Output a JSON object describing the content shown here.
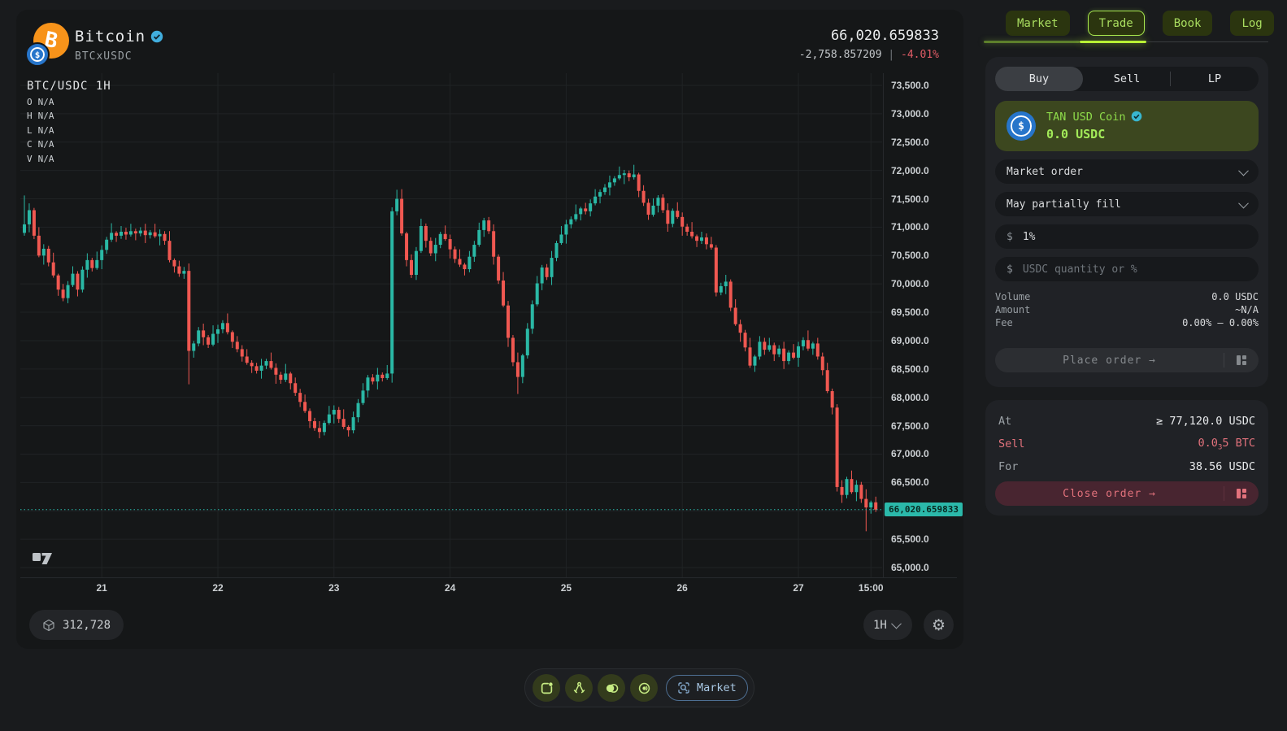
{
  "chart_panel": {
    "asset": {
      "name": "Bitcoin",
      "pair": "BTCxUSDC",
      "verified": true,
      "base_symbol": "B",
      "quote_symbol": "$"
    },
    "price": {
      "last": "66,020.659833",
      "change": "-2,758.857209",
      "separator": "|",
      "change_pct": "-4.01%"
    },
    "legend": {
      "symbol": "BTC/USDC 1H",
      "rows": [
        {
          "k": "O",
          "v": "N/A"
        },
        {
          "k": "H",
          "v": "N/A"
        },
        {
          "k": "L",
          "v": "N/A"
        },
        {
          "k": "C",
          "v": "N/A"
        },
        {
          "k": "V",
          "v": "N/A"
        }
      ]
    },
    "price_tag": "66,020.659833",
    "footer": {
      "block_number": "312,728",
      "interval": "1H"
    }
  },
  "chart_data": {
    "type": "candlestick",
    "title": "BTC/USDC 1H",
    "ohlcv_display": {
      "O": "N/A",
      "H": "N/A",
      "L": "N/A",
      "C": "N/A",
      "V": "N/A"
    },
    "y_axis": {
      "max": 73500,
      "min": 65000,
      "step": 500
    },
    "y_ticks": [
      "73,500.0",
      "73,000.0",
      "72,500.0",
      "72,000.0",
      "71,500.0",
      "71,000.0",
      "70,500.0",
      "70,000.0",
      "69,500.0",
      "69,000.0",
      "68,500.0",
      "68,000.0",
      "67,500.0",
      "67,000.0",
      "66,500.0",
      "66,000.0",
      "65,500.0",
      "65,000.0"
    ],
    "x_ticks": [
      {
        "label": "21",
        "candle_index": 16
      },
      {
        "label": "22",
        "candle_index": 40
      },
      {
        "label": "23",
        "candle_index": 64
      },
      {
        "label": "24",
        "candle_index": 88
      },
      {
        "label": "25",
        "candle_index": 112
      },
      {
        "label": "26",
        "candle_index": 136
      },
      {
        "label": "27",
        "candle_index": 160
      },
      {
        "label": "15:00",
        "candle_index": 175
      }
    ],
    "interval": "1H",
    "last_price": 66020.659833,
    "colors": {
      "up": "#2ab8a5",
      "down": "#f05851",
      "price_line": "#2bb9aa"
    },
    "series": {
      "first_open": 70900,
      "closes": [
        71050,
        71300,
        70850,
        70500,
        70620,
        70380,
        70150,
        69900,
        69750,
        69980,
        70180,
        69900,
        70250,
        70420,
        70280,
        70420,
        70600,
        70780,
        70900,
        70850,
        70920,
        70870,
        70930,
        70890,
        70940,
        70860,
        70910,
        70840,
        70880,
        70760,
        70420,
        70310,
        70180,
        70230,
        68820,
        68950,
        69180,
        69060,
        68930,
        69120,
        69200,
        69310,
        69150,
        68980,
        68850,
        68720,
        68610,
        68550,
        68470,
        68560,
        68640,
        68520,
        68400,
        68310,
        68420,
        68250,
        68080,
        67920,
        67760,
        67580,
        67460,
        67390,
        67550,
        67700,
        67780,
        67620,
        67480,
        67420,
        67650,
        67900,
        68120,
        68350,
        68280,
        68400,
        68340,
        68420,
        71280,
        71500,
        70890,
        70420,
        70160,
        70580,
        71020,
        70760,
        70540,
        70690,
        70880,
        70790,
        70610,
        70440,
        70340,
        70260,
        70480,
        70690,
        70950,
        71120,
        70930,
        70480,
        70060,
        69620,
        69050,
        68620,
        68360,
        68740,
        69210,
        69640,
        70010,
        70290,
        70120,
        70460,
        70720,
        70870,
        71050,
        71140,
        71230,
        71330,
        71280,
        71420,
        71540,
        71620,
        71700,
        71790,
        71860,
        71920,
        71950,
        71880,
        71930,
        71640,
        71430,
        71220,
        71380,
        71520,
        71300,
        71060,
        71290,
        71180,
        71010,
        70920,
        70840,
        70760,
        70820,
        70700,
        70640,
        69850,
        69960,
        70040,
        69580,
        69290,
        69140,
        68880,
        68560,
        68720,
        68980,
        68840,
        68920,
        68760,
        68860,
        68640,
        68790,
        68700,
        68900,
        69010,
        68860,
        68950,
        68720,
        68480,
        68110,
        67820,
        66420,
        66280,
        66560,
        66330,
        66460,
        66210,
        66060,
        66150,
        66020.66
      ],
      "wick_up_cycle": [
        60,
        120,
        40,
        150,
        80,
        50,
        170,
        30,
        100,
        70,
        130,
        45
      ],
      "wick_dn_cycle": [
        50,
        140,
        60,
        30,
        160,
        70,
        40,
        110,
        55,
        90,
        35,
        120
      ],
      "overrides": {
        "0": {
          "high": 71560
        },
        "34": {
          "low": 68230
        },
        "61": {
          "low": 67280
        },
        "76": {
          "high": 71350,
          "low": 68260
        },
        "77": {
          "high": 71660
        },
        "102": {
          "low": 68060
        },
        "124": {
          "high": 72010
        },
        "143": {
          "low": 69780
        },
        "168": {
          "low": 66340
        },
        "174": {
          "low": 65640
        },
        "176": {
          "low": 65980
        }
      }
    }
  },
  "side_panel": {
    "tabs": {
      "items": [
        {
          "label": "Market"
        },
        {
          "label": "Trade"
        },
        {
          "label": "Book"
        },
        {
          "label": "Log"
        }
      ],
      "active": "Trade"
    },
    "trade_card": {
      "modes": {
        "items": [
          "Buy",
          "Sell",
          "LP"
        ],
        "active": "Buy"
      },
      "balance": {
        "name": "TAN USD Coin",
        "verified": true,
        "amount": "0.0 USDC"
      },
      "order_type": "Market order",
      "fill_policy": "May partially fill",
      "slippage": {
        "prefix": "$",
        "value": "1%"
      },
      "quantity": {
        "prefix": "$",
        "placeholder": "USDC quantity or %"
      },
      "info": [
        {
          "label": "Volume",
          "value": "0.0 USDC"
        },
        {
          "label": "Amount",
          "value": "~N/A"
        },
        {
          "label": "Fee",
          "value": "0.00% — 0.00%"
        }
      ],
      "submit_label": "Place order →"
    },
    "order_card": {
      "rows": [
        {
          "label": "At",
          "value": "≥ 77,120.0 USDC"
        },
        {
          "label": "Sell",
          "value_parts": [
            "0.0",
            "3",
            "5 BTC"
          ]
        },
        {
          "label": "For",
          "value": "38.56 USDC"
        }
      ],
      "close_label": "Close order →"
    },
    "accent_green": "#b9f135",
    "accent_red": "#e2727c",
    "usdc_blue": "#2775ca"
  },
  "toolbar": {
    "icons": [
      "window-dot",
      "compass",
      "blend",
      "broadcast"
    ],
    "market_label": "Market"
  }
}
